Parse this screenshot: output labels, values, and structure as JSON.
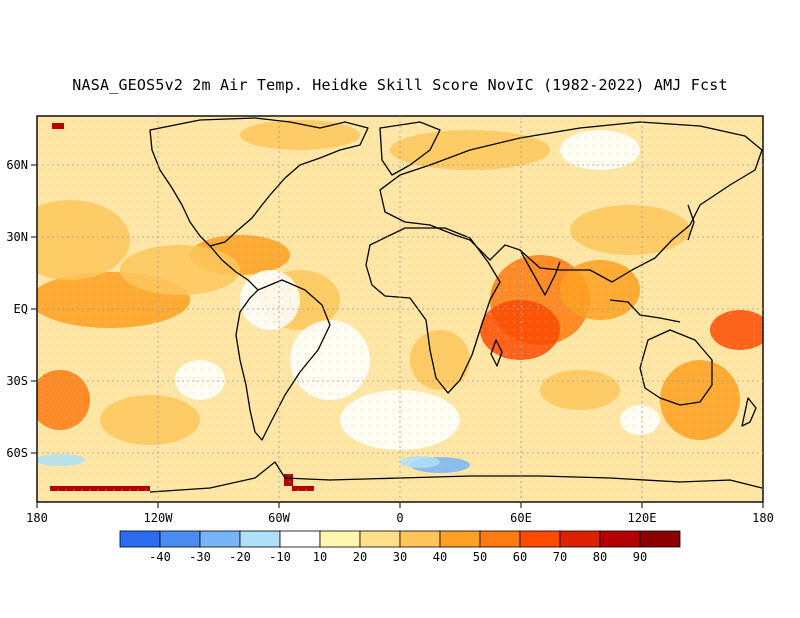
{
  "title": "NASA_GEOS5v2 2m Air Temp. Heidke Skill Score NovIC (1982-2022) AMJ Fcst",
  "map": {
    "lon_ticks": [
      "180",
      "120W",
      "60W",
      "0",
      "60E",
      "120E",
      "180"
    ],
    "lat_ticks": [
      "60N",
      "30N",
      "EQ",
      "30S",
      "60S"
    ],
    "dominant_color": "#ffd27a",
    "high_skill_color": "#f06a1a",
    "negative_skill_color": "#6aaaf0"
  },
  "colorbar": {
    "labels": [
      "-40",
      "-30",
      "-20",
      "-10",
      "10",
      "20",
      "30",
      "40",
      "50",
      "60",
      "70",
      "80",
      "90"
    ],
    "colors": [
      "#2c6cf0",
      "#4a8cf0",
      "#78b4f8",
      "#aee0f8",
      "#ffffff",
      "#fff6b0",
      "#ffe08a",
      "#ffc55a",
      "#ffa020",
      "#ff7a10",
      "#ff4a00",
      "#dc2000",
      "#b40000",
      "#8c0000"
    ]
  }
}
